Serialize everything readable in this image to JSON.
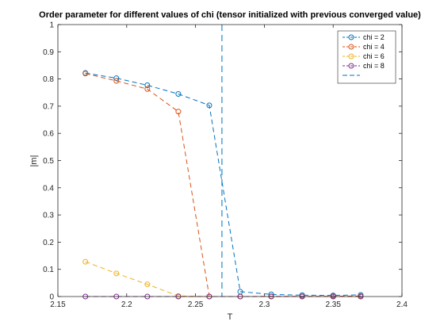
{
  "chart_data": {
    "type": "line",
    "title": "Order parameter for different values of chi (tensor initialized with previous converged value)",
    "xlabel": "T",
    "ylabel": "|m|",
    "xlim": [
      2.15,
      2.4
    ],
    "ylim": [
      0,
      1
    ],
    "xticks": [
      2.15,
      2.2,
      2.25,
      2.3,
      2.35,
      2.4
    ],
    "xtick_labels": [
      "2.15",
      "2.2",
      "2.25",
      "2.3",
      "2.35",
      "2.4"
    ],
    "yticks": [
      0,
      0.1,
      0.2,
      0.3,
      0.4,
      0.5,
      0.6,
      0.7,
      0.8,
      0.9,
      1
    ],
    "ytick_labels": [
      "0",
      "0.1",
      "0.2",
      "0.3",
      "0.4",
      "0.5",
      "0.6",
      "0.7",
      "0.8",
      "0.9",
      "1"
    ],
    "grid": false,
    "legend_position": "top-right",
    "x": [
      2.17,
      2.1925,
      2.215,
      2.2375,
      2.26,
      2.2825,
      2.305,
      2.3275,
      2.35,
      2.37
    ],
    "series": [
      {
        "name": "chi = 2",
        "color": "#0072BD",
        "marker": "circle",
        "line": "dashed",
        "values": [
          0.822,
          0.803,
          0.777,
          0.745,
          0.703,
          0.018,
          0.008,
          0.005,
          0.004,
          0.006
        ]
      },
      {
        "name": "chi = 4",
        "color": "#D95319",
        "marker": "circle",
        "line": "dashed",
        "values": [
          0.82,
          0.793,
          0.763,
          0.68,
          0.0,
          0.0,
          0.001,
          0.001,
          0.001,
          0.002
        ]
      },
      {
        "name": "chi = 6",
        "color": "#EDB120",
        "marker": "circle",
        "line": "dashed",
        "values": [
          0.128,
          0.085,
          0.045,
          0.002,
          0.0,
          0.0,
          0.0,
          0.0,
          0.0,
          0.0
        ]
      },
      {
        "name": "chi = 8",
        "color": "#7E2F8E",
        "marker": "circle",
        "line": "dashed",
        "values": [
          0.0,
          0.0,
          0.0,
          0.0,
          0.0,
          0.0,
          0.0,
          0.0,
          0.0,
          0.0
        ]
      }
    ],
    "reference_line": {
      "name": "",
      "color": "#0072BD",
      "line": "dashed",
      "orientation": "vertical",
      "x": 2.2692
    }
  }
}
